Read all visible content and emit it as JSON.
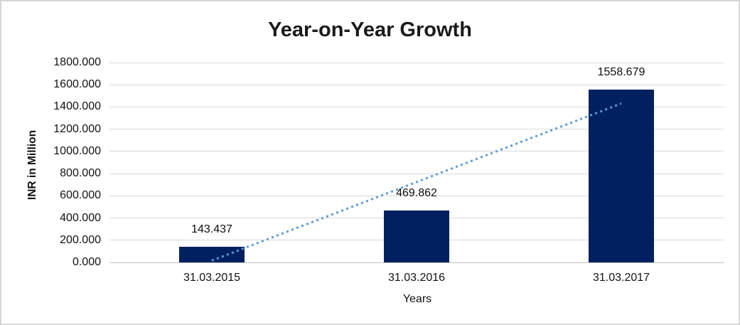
{
  "frame": {
    "background": "#ffffff",
    "border_color": "#d6d6d6"
  },
  "chart_data": {
    "type": "bar",
    "title": "Year-on-Year Growth",
    "xlabel": "Years",
    "ylabel": "INR in Million",
    "categories": [
      "31.03.2015",
      "31.03.2016",
      "31.03.2017"
    ],
    "values": [
      143.437,
      469.862,
      1558.679
    ],
    "data_labels": [
      "143.437",
      "469.862",
      "1558.679"
    ],
    "ylim": [
      0,
      1800
    ],
    "ytick_step": 200,
    "y_tick_labels": [
      "0.000",
      "200.000",
      "400.000",
      "600.000",
      "800.000",
      "1000.000",
      "1200.000",
      "1400.000",
      "1600.000",
      "1800.000"
    ],
    "grid": true,
    "legend_position": "none",
    "bar_color": "#002060",
    "gridline_color": "#d9d9d9",
    "trendline": {
      "type": "linear",
      "style": "dotted",
      "color": "#5b9bd5"
    }
  }
}
